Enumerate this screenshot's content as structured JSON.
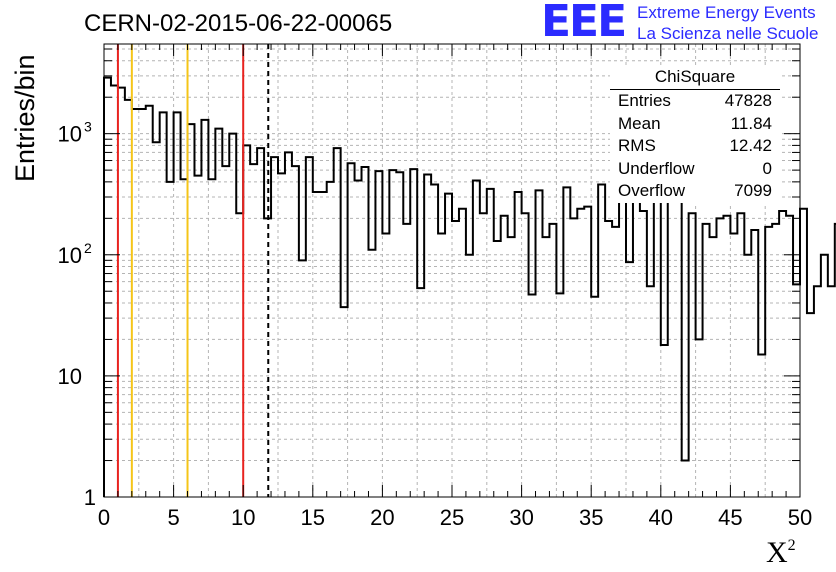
{
  "header": {
    "title": "CERN-02-2015-06-22-00065"
  },
  "logo": {
    "mark": "EEE",
    "line1": "Extreme Energy Events",
    "line2": "La Scienza nelle Scuole"
  },
  "stats_box": {
    "title": "ChiSquare",
    "rows": [
      {
        "label": "Entries",
        "value": "47828"
      },
      {
        "label": "Mean",
        "value": "11.84"
      },
      {
        "label": "RMS",
        "value": "12.42"
      },
      {
        "label": "Underflow",
        "value": "0"
      },
      {
        "label": "Overflow",
        "value": "7099"
      }
    ]
  },
  "axes": {
    "ylabel": "Entries/bin",
    "xlabel": "X",
    "xlabel_sup": "2",
    "xticks": [
      "0",
      "5",
      "10",
      "15",
      "20",
      "25",
      "30",
      "35",
      "40",
      "45",
      "50"
    ],
    "yticks": [
      "1",
      "10",
      "10",
      "10"
    ],
    "yticks_exp": [
      "",
      "",
      "2",
      "3"
    ]
  },
  "chart_data": {
    "type": "bar",
    "title": "CERN-02-2015-06-22-00065",
    "xlabel": "X²",
    "ylabel": "Entries/bin",
    "xlim": [
      0,
      50
    ],
    "ylim": [
      1,
      5500
    ],
    "log_y": true,
    "grid": true,
    "bin_width": 0.5,
    "values": [
      2900,
      2500,
      2400,
      1900,
      1600,
      1600,
      1700,
      850,
      1500,
      400,
      1500,
      420,
      1200,
      450,
      1300,
      420,
      1100,
      540,
      1000,
      220,
      800,
      560,
      760,
      200,
      640,
      470,
      700,
      540,
      90,
      640,
      330,
      330,
      400,
      760,
      37,
      570,
      410,
      530,
      110,
      490,
      150,
      500,
      480,
      180,
      510,
      53,
      460,
      380,
      150,
      320,
      190,
      240,
      100,
      410,
      220,
      350,
      130,
      210,
      140,
      330,
      220,
      47,
      340,
      140,
      180,
      48,
      360,
      200,
      240,
      250,
      45,
      380,
      190,
      170,
      290,
      87,
      380,
      230,
      55,
      310,
      18,
      300,
      360,
      2,
      220,
      20,
      180,
      140,
      200,
      210,
      150,
      220,
      100,
      160,
      15,
      170,
      180,
      230,
      210,
      57,
      240,
      33,
      55,
      100,
      55,
      180,
      110,
      70,
      110,
      15,
      220,
      100,
      160,
      24,
      110,
      100,
      15,
      110,
      190,
      220
    ],
    "vertical_lines": [
      {
        "x": 1,
        "color": "#e8231f",
        "style": "solid"
      },
      {
        "x": 2,
        "color": "#f5c518",
        "style": "solid"
      },
      {
        "x": 6,
        "color": "#f5c518",
        "style": "solid"
      },
      {
        "x": 10,
        "color": "#e8231f",
        "style": "solid"
      },
      {
        "x": 11.8,
        "color": "#000000",
        "style": "dashed"
      }
    ]
  }
}
